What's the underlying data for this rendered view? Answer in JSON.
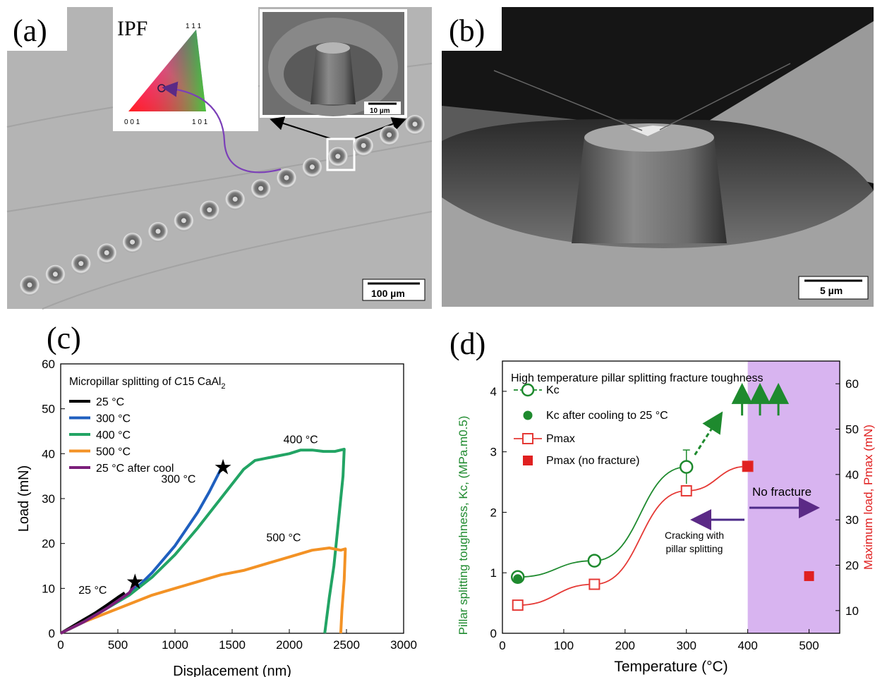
{
  "panel_labels": {
    "a": "(a)",
    "b": "(b)",
    "c": "(c)",
    "d": "(d)"
  },
  "panel_a": {
    "ipf_title": "IPF",
    "ipf_corners": {
      "top": "1 1 1",
      "left": "0 0 1",
      "right": "1 0 1"
    },
    "inset_scale": "10 µm",
    "scale_bar": "100  µm"
  },
  "panel_b": {
    "scale_bar": "5 µm"
  },
  "chart_data": [
    {
      "type": "line",
      "panel": "c",
      "title": "Micropillar splitting of C15 CaAl2",
      "title_parts": [
        "Micropillar splitting of ",
        "C",
        "15 CaAl",
        "2"
      ],
      "xlabel": "Displacement (nm)",
      "ylabel": "Load (mN)",
      "xlim": [
        0,
        3000
      ],
      "ylim": [
        0,
        60
      ],
      "xticks": [
        0,
        500,
        1000,
        1500,
        2000,
        2500,
        3000
      ],
      "yticks": [
        0,
        10,
        20,
        30,
        40,
        50,
        60
      ],
      "legend": "top-left",
      "series": [
        {
          "name": "25 °C",
          "color": "#000000",
          "points": [
            [
              0,
              0
            ],
            [
              100,
              1.5
            ],
            [
              200,
              3
            ],
            [
              300,
              4.5
            ],
            [
              400,
              6.2
            ],
            [
              500,
              8
            ],
            [
              560,
              9
            ]
          ]
        },
        {
          "name": "300 °C",
          "color": "#1f5fbf",
          "points": [
            [
              0,
              0
            ],
            [
              200,
              2.5
            ],
            [
              400,
              5.5
            ],
            [
              600,
              9
            ],
            [
              700,
              11
            ],
            [
              800,
              13.5
            ],
            [
              1000,
              19.5
            ],
            [
              1200,
              27
            ],
            [
              1300,
              31.5
            ],
            [
              1400,
              36.5
            ]
          ]
        },
        {
          "name": "400 °C",
          "color": "#22a464",
          "points": [
            [
              0,
              0
            ],
            [
              200,
              2.5
            ],
            [
              400,
              5.5
            ],
            [
              600,
              8.5
            ],
            [
              800,
              12.5
            ],
            [
              1000,
              17.5
            ],
            [
              1200,
              23.5
            ],
            [
              1400,
              30
            ],
            [
              1600,
              36.5
            ],
            [
              1700,
              38.5
            ],
            [
              1800,
              39
            ],
            [
              1900,
              39.5
            ],
            [
              2000,
              40
            ],
            [
              2100,
              40.8
            ],
            [
              2200,
              40.8
            ],
            [
              2300,
              40.5
            ],
            [
              2400,
              40.5
            ],
            [
              2480,
              41
            ],
            [
              2470,
              35
            ],
            [
              2430,
              25
            ],
            [
              2390,
              15
            ],
            [
              2350,
              8
            ],
            [
              2310,
              0
            ]
          ]
        },
        {
          "name": "500 °C",
          "color": "#f39225",
          "points": [
            [
              0,
              0
            ],
            [
              200,
              2.5
            ],
            [
              400,
              4.5
            ],
            [
              600,
              6.5
            ],
            [
              800,
              8.5
            ],
            [
              1000,
              10
            ],
            [
              1200,
              11.5
            ],
            [
              1400,
              13
            ],
            [
              1600,
              14
            ],
            [
              1800,
              15.5
            ],
            [
              2000,
              17
            ],
            [
              2200,
              18.5
            ],
            [
              2350,
              19
            ],
            [
              2450,
              18.5
            ],
            [
              2490,
              18.8
            ],
            [
              2480,
              12
            ],
            [
              2460,
              5
            ],
            [
              2450,
              0
            ]
          ]
        },
        {
          "name": "25 °C after cool",
          "color": "#7b1f7a",
          "points": [
            [
              0,
              0
            ],
            [
              200,
              2.5
            ],
            [
              400,
              5.5
            ],
            [
              600,
              9
            ],
            [
              650,
              11
            ]
          ]
        }
      ],
      "fracture_markers": [
        [
          650,
          11.5
        ],
        [
          1420,
          37
        ]
      ],
      "annotations": [
        {
          "text": "400 °C",
          "x": 2100,
          "y": 42.3
        },
        {
          "text": "300 °C",
          "x": 1030,
          "y": 33.5
        },
        {
          "text": "500 °C",
          "x": 1950,
          "y": 20.5
        },
        {
          "text": "25 °C",
          "x": 280,
          "y": 8.8
        }
      ]
    },
    {
      "type": "scatter",
      "panel": "d",
      "title": "High temperature pillar splitting fracture toughness",
      "xlabel": "Temperature (°C)",
      "ylabel": "Pillar splitting toughness, Kc, (MPa.m0.5)",
      "y2label": "Maximum load, Pmax (mN)",
      "xlim": [
        0,
        550
      ],
      "ylim": [
        0,
        4.5
      ],
      "y2lim": [
        5,
        65
      ],
      "xticks": [
        0,
        100,
        200,
        300,
        400,
        500
      ],
      "yticks": [
        0,
        1,
        2,
        3,
        4
      ],
      "y2ticks": [
        10,
        20,
        30,
        40,
        50,
        60
      ],
      "legend": "top-left",
      "series": [
        {
          "name": "Kc",
          "color": "#1e8a2e",
          "marker": "open-circle",
          "axis": "left",
          "x": [
            25,
            150,
            300
          ],
          "y": [
            0.93,
            1.2,
            2.75
          ],
          "yerr": [
            0,
            0,
            0.28
          ]
        },
        {
          "name": "Kc after cooling to 25 °C",
          "color": "#1e8a2e",
          "marker": "filled-circle",
          "axis": "left",
          "x": [
            25
          ],
          "y": [
            0.9
          ]
        },
        {
          "name": "Pmax",
          "color": "#e53935",
          "marker": "open-square",
          "axis": "right",
          "x": [
            25,
            150,
            300,
            400
          ],
          "y": [
            11.2,
            15.8,
            36.4,
            41.8
          ]
        },
        {
          "name": "Pmax (no fracture)",
          "color": "#e02020",
          "marker": "filled-square",
          "axis": "right",
          "x": [
            400,
            500
          ],
          "y": [
            41.8,
            17.6
          ]
        }
      ],
      "shaded_region": {
        "x": [
          400,
          550
        ],
        "color": "#d8b4f0"
      },
      "annotations": [
        {
          "text": "No fracture"
        },
        {
          "text": "Cracking with"
        },
        {
          "text": "pillar splitting"
        }
      ]
    }
  ]
}
